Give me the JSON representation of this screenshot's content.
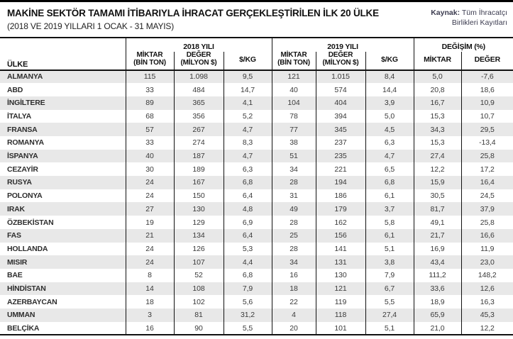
{
  "header": {
    "title": "MAKİNE SEKTÖR TAMAMI İTİBARIYLA İHRACAT GERÇEKLEŞTİRİLEN İLK 20 ÜLKE",
    "subtitle": "(2018 VE 2019 YILLARI 1 OCAK - 31 MAYIS)",
    "source_label": "Kaynak:",
    "source_text": "Tüm İhracatçı\nBirlikleri Kayıtları"
  },
  "table": {
    "country_header": "ÜLKE",
    "group_2018": "2018 YILI",
    "group_2019": "2019 YILI",
    "group_change": "DEĞİŞİM (%)",
    "sub_amount": "MİKTAR\n(BİN TON)",
    "sub_value": "DEĞER\n(MİLYON $)",
    "sub_perkg": "$/KG",
    "sub_change_amount": "MİKTAR",
    "sub_change_value": "DEĞER",
    "rows": [
      {
        "country": "ALMANYA",
        "m18": "115",
        "d18": "1.098",
        "kg18": "9,5",
        "m19": "121",
        "d19": "1.015",
        "kg19": "8,4",
        "mch": "5,0",
        "dch": "-7,6"
      },
      {
        "country": "ABD",
        "m18": "33",
        "d18": "484",
        "kg18": "14,7",
        "m19": "40",
        "d19": "574",
        "kg19": "14,4",
        "mch": "20,8",
        "dch": "18,6"
      },
      {
        "country": "İNGİLTERE",
        "m18": "89",
        "d18": "365",
        "kg18": "4,1",
        "m19": "104",
        "d19": "404",
        "kg19": "3,9",
        "mch": "16,7",
        "dch": "10,9"
      },
      {
        "country": "İTALYA",
        "m18": "68",
        "d18": "356",
        "kg18": "5,2",
        "m19": "78",
        "d19": "394",
        "kg19": "5,0",
        "mch": "15,3",
        "dch": "10,7"
      },
      {
        "country": "FRANSA",
        "m18": "57",
        "d18": "267",
        "kg18": "4,7",
        "m19": "77",
        "d19": "345",
        "kg19": "4,5",
        "mch": "34,3",
        "dch": "29,5"
      },
      {
        "country": "ROMANYA",
        "m18": "33",
        "d18": "274",
        "kg18": "8,3",
        "m19": "38",
        "d19": "237",
        "kg19": "6,3",
        "mch": "15,3",
        "dch": "-13,4"
      },
      {
        "country": "İSPANYA",
        "m18": "40",
        "d18": "187",
        "kg18": "4,7",
        "m19": "51",
        "d19": "235",
        "kg19": "4,7",
        "mch": "27,4",
        "dch": "25,8"
      },
      {
        "country": "CEZAYİR",
        "m18": "30",
        "d18": "189",
        "kg18": "6,3",
        "m19": "34",
        "d19": "221",
        "kg19": "6,5",
        "mch": "12,2",
        "dch": "17,2"
      },
      {
        "country": "RUSYA",
        "m18": "24",
        "d18": "167",
        "kg18": "6,8",
        "m19": "28",
        "d19": "194",
        "kg19": "6,8",
        "mch": "15,9",
        "dch": "16,4"
      },
      {
        "country": "POLONYA",
        "m18": "24",
        "d18": "150",
        "kg18": "6,4",
        "m19": "31",
        "d19": "186",
        "kg19": "6,1",
        "mch": "30,5",
        "dch": "24,5"
      },
      {
        "country": "IRAK",
        "m18": "27",
        "d18": "130",
        "kg18": "4,8",
        "m19": "49",
        "d19": "179",
        "kg19": "3,7",
        "mch": "81,7",
        "dch": "37,9"
      },
      {
        "country": "ÖZBEKİSTAN",
        "m18": "19",
        "d18": "129",
        "kg18": "6,9",
        "m19": "28",
        "d19": "162",
        "kg19": "5,8",
        "mch": "49,1",
        "dch": "25,8"
      },
      {
        "country": "FAS",
        "m18": "21",
        "d18": "134",
        "kg18": "6,4",
        "m19": "25",
        "d19": "156",
        "kg19": "6,1",
        "mch": "21,7",
        "dch": "16,6"
      },
      {
        "country": "HOLLANDA",
        "m18": "24",
        "d18": "126",
        "kg18": "5,3",
        "m19": "28",
        "d19": "141",
        "kg19": "5,1",
        "mch": "16,9",
        "dch": "11,9"
      },
      {
        "country": "MISIR",
        "m18": "24",
        "d18": "107",
        "kg18": "4,4",
        "m19": "34",
        "d19": "131",
        "kg19": "3,8",
        "mch": "43,4",
        "dch": "23,0"
      },
      {
        "country": "BAE",
        "m18": "8",
        "d18": "52",
        "kg18": "6,8",
        "m19": "16",
        "d19": "130",
        "kg19": "7,9",
        "mch": "111,2",
        "dch": "148,2"
      },
      {
        "country": "HİNDİSTAN",
        "m18": "14",
        "d18": "108",
        "kg18": "7,9",
        "m19": "18",
        "d19": "121",
        "kg19": "6,7",
        "mch": "33,6",
        "dch": "12,6"
      },
      {
        "country": "AZERBAYCAN",
        "m18": "18",
        "d18": "102",
        "kg18": "5,6",
        "m19": "22",
        "d19": "119",
        "kg19": "5,5",
        "mch": "18,9",
        "dch": "16,3"
      },
      {
        "country": "UMMAN",
        "m18": "3",
        "d18": "81",
        "kg18": "31,2",
        "m19": "4",
        "d19": "118",
        "kg19": "27,4",
        "mch": "65,9",
        "dch": "45,3"
      },
      {
        "country": "BELÇİKA",
        "m18": "16",
        "d18": "90",
        "kg18": "5,5",
        "m19": "20",
        "d19": "101",
        "kg19": "5,1",
        "mch": "21,0",
        "dch": "12,2"
      }
    ]
  },
  "colors": {
    "top_bar": "#000000",
    "row_stripe": "#e8e8e8",
    "border": "#111111",
    "source_text": "#3c3c50",
    "cell_text": "#3a3a3a"
  }
}
